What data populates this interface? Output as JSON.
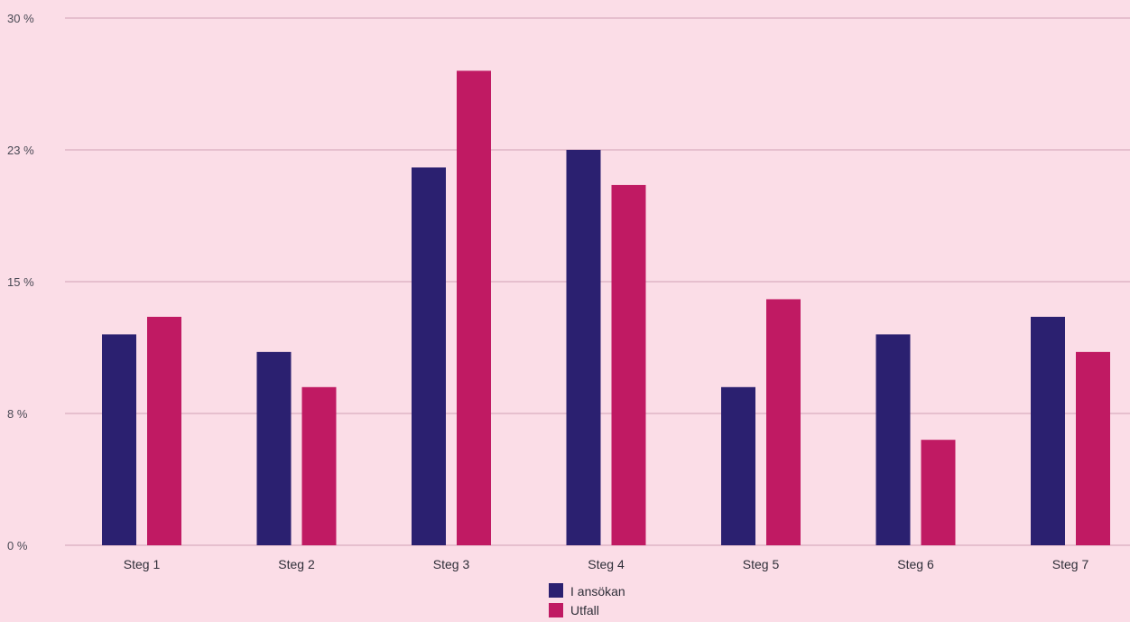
{
  "chart_data": {
    "type": "bar",
    "categories": [
      "Steg 1",
      "Steg 2",
      "Steg 3",
      "Steg 4",
      "Steg 5",
      "Steg 6",
      "Steg 7"
    ],
    "series": [
      {
        "name": "I ansökan",
        "values": [
          12,
          11,
          21.5,
          22.5,
          9,
          12,
          13
        ],
        "color": "#2b2070"
      },
      {
        "name": "Utfall",
        "values": [
          13,
          9,
          27,
          20.5,
          14,
          6,
          11
        ],
        "color": "#c01a63"
      }
    ],
    "yticks": [
      {
        "value": 0,
        "label": "0 %"
      },
      {
        "value": 7.5,
        "label": "8 %"
      },
      {
        "value": 15,
        "label": "15 %"
      },
      {
        "value": 22.5,
        "label": "23 %"
      },
      {
        "value": 30,
        "label": "30 %"
      }
    ],
    "ylim": [
      0,
      30
    ],
    "grid": true,
    "legend_position": "bottom-center",
    "colors": {
      "background": "#fbdde7",
      "grid": "#e6bfce"
    }
  }
}
